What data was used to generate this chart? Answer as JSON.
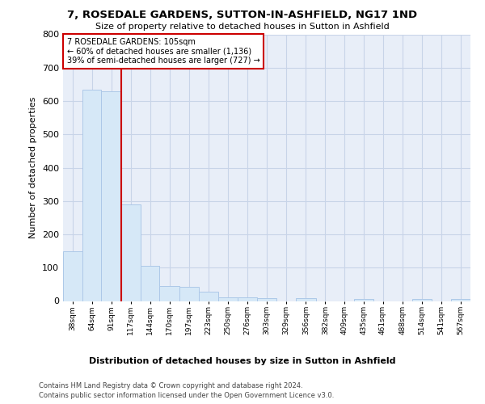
{
  "title": "7, ROSEDALE GARDENS, SUTTON-IN-ASHFIELD, NG17 1ND",
  "subtitle": "Size of property relative to detached houses in Sutton in Ashfield",
  "xlabel": "Distribution of detached houses by size in Sutton in Ashfield",
  "ylabel": "Number of detached properties",
  "footer_line1": "Contains HM Land Registry data © Crown copyright and database right 2024.",
  "footer_line2": "Contains public sector information licensed under the Open Government Licence v3.0.",
  "annotation_title": "7 ROSEDALE GARDENS: 105sqm",
  "annotation_line1": "← 60% of detached houses are smaller (1,136)",
  "annotation_line2": "39% of semi-detached houses are larger (727) →",
  "bar_color": "#d6e8f7",
  "bar_edge_color": "#adc8e8",
  "vline_color": "#cc0000",
  "vline_x": 104,
  "categories": [
    "38sqm",
    "64sqm",
    "91sqm",
    "117sqm",
    "144sqm",
    "170sqm",
    "197sqm",
    "223sqm",
    "250sqm",
    "276sqm",
    "303sqm",
    "329sqm",
    "356sqm",
    "382sqm",
    "409sqm",
    "435sqm",
    "461sqm",
    "488sqm",
    "514sqm",
    "541sqm",
    "567sqm"
  ],
  "bin_edges": [
    25,
    51,
    77,
    104,
    130,
    156,
    183,
    209,
    236,
    262,
    288,
    315,
    341,
    368,
    394,
    420,
    446,
    472,
    499,
    525,
    552,
    578
  ],
  "values": [
    150,
    635,
    630,
    290,
    105,
    45,
    43,
    28,
    12,
    12,
    8,
    0,
    8,
    0,
    0,
    5,
    0,
    0,
    5,
    0,
    5
  ],
  "ylim": [
    0,
    800
  ],
  "yticks": [
    0,
    100,
    200,
    300,
    400,
    500,
    600,
    700,
    800
  ],
  "grid_color": "#c8d4e8",
  "background_color": "#e8eef8"
}
